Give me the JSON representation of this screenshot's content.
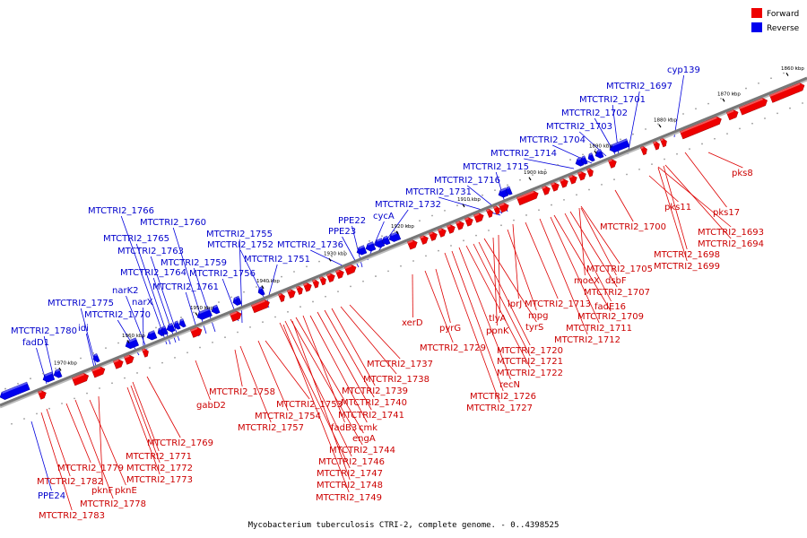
{
  "caption": "Mycobacterium tuberculosis CTRI-2, complete genome. - 0..4398525",
  "legend": [
    {
      "label": "Forward",
      "color": "#ee0000"
    },
    {
      "label": "Reverse",
      "color": "#0000ee"
    }
  ],
  "colors": {
    "forward": "#ee0000",
    "reverse": "#0000ee",
    "forward_line": "#dd0000",
    "reverse_line": "#0000dd",
    "axis": "#777777"
  },
  "ticks": [
    "1860 kbp",
    "1870 kbp",
    "1880 kbp",
    "1890 kbp",
    "1900 kbp",
    "1910 kbp",
    "1920 kbp",
    "1930 kbp",
    "1940 kbp",
    "1950 kbp",
    "1960 kbp",
    "1970 kbp"
  ],
  "reverse_labels": [
    "cyp139",
    "MTCTRI2_1697",
    "MTCTRI2_1701",
    "MTCTRI2_1702",
    "MTCTRI2_1703",
    "MTCTRI2_1704",
    "MTCTRI2_1714",
    "MTCTRI2_1715",
    "MTCTRI2_1716",
    "MTCTRI2_1731",
    "MTCTRI2_1732",
    "cycA",
    "PPE22",
    "PPE23",
    "MTCTRI2_1736",
    "MTCTRI2_1751",
    "MTCTRI2_1752",
    "MTCTRI2_1755",
    "MTCTRI2_1756",
    "MTCTRI2_1759",
    "MTCTRI2_1760",
    "MTCTRI2_1761",
    "MTCTRI2_1763",
    "MTCTRI2_1764",
    "MTCTRI2_1765",
    "MTCTRI2_1766",
    "narK2",
    "narX",
    "MTCTRI2_1770",
    "MTCTRI2_1775",
    "idi",
    "MTCTRI2_1780",
    "fadD1",
    "PPE24"
  ],
  "forward_labels": [
    "pks8",
    "pks17",
    "pks11",
    "MTCTRI2_1693",
    "MTCTRI2_1694",
    "MTCTRI2_1698",
    "MTCTRI2_1699",
    "MTCTRI2_1700",
    "MTCTRI2_1705",
    "moeX",
    "dsbF",
    "MTCTRI2_1707",
    "fadE16",
    "MTCTRI2_1709",
    "MTCTRI2_1711",
    "MTCTRI2_1712",
    "lprJ",
    "mpg",
    "MTCTRI2_1713",
    "tlyA",
    "ppnK",
    "tyrS",
    "MTCTRI2_1720",
    "MTCTRI2_1721",
    "MTCTRI2_1722",
    "recN",
    "MTCTRI2_1726",
    "MTCTRI2_1727",
    "xerD",
    "pyrG",
    "MTCTRI2_1729",
    "MTCTRI2_1737",
    "MTCTRI2_1738",
    "MTCTRI2_1739",
    "MTCTRI2_1740",
    "MTCTRI2_1741",
    "cmk",
    "fadB3",
    "engA",
    "MTCTRI2_1744",
    "MTCTRI2_1746",
    "MTCTRI2_1747",
    "MTCTRI2_1748",
    "MTCTRI2_1749",
    "MTCTRI2_1753",
    "MTCTRI2_1754",
    "MTCTRI2_1757",
    "MTCTRI2_1758",
    "gabD2",
    "MTCTRI2_1769",
    "MTCTRI2_1771",
    "MTCTRI2_1772",
    "MTCTRI2_1773",
    "pknF",
    "pknE",
    "MTCTRI2_1778",
    "MTCTRI2_1779",
    "MTCTRI2_1782",
    "MTCTRI2_1783"
  ]
}
